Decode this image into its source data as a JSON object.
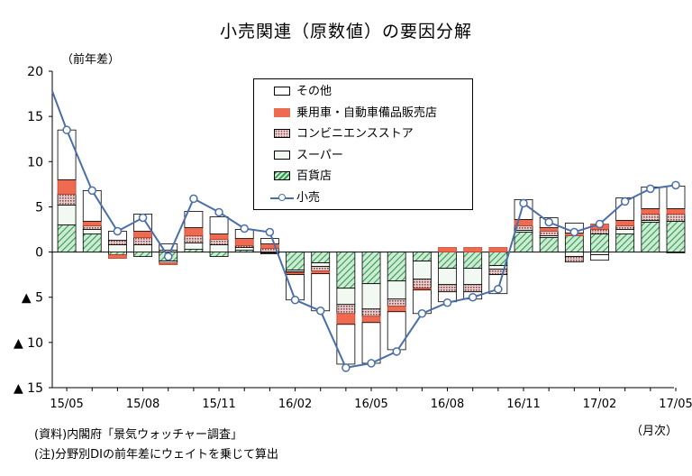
{
  "chart_data": {
    "type": "bar",
    "title": "小売関連（原数値）の要因分解",
    "ylabel": "（前年差）",
    "xlabel": "（月次）",
    "ylim": [
      -15,
      20
    ],
    "yticks": [
      {
        "value": 20,
        "label": "20"
      },
      {
        "value": 15,
        "label": "15"
      },
      {
        "value": 10,
        "label": "10"
      },
      {
        "value": 5,
        "label": "5"
      },
      {
        "value": 0,
        "label": "0"
      },
      {
        "value": -5,
        "label": "▲ 5"
      },
      {
        "value": -10,
        "label": "▲ 10"
      },
      {
        "value": -15,
        "label": "▲ 15"
      }
    ],
    "categories": [
      "15/05",
      "15/06",
      "15/07",
      "15/08",
      "15/09",
      "15/10",
      "15/11",
      "15/12",
      "16/01",
      "16/02",
      "16/03",
      "16/04",
      "16/05",
      "16/06",
      "16/07",
      "16/08",
      "16/09",
      "16/10",
      "16/11",
      "16/12",
      "17/01",
      "17/02",
      "17/03",
      "17/04",
      "17/05"
    ],
    "xtick_labels": [
      {
        "index": 0,
        "label": "15/05"
      },
      {
        "index": 3,
        "label": "15/08"
      },
      {
        "index": 6,
        "label": "15/11"
      },
      {
        "index": 9,
        "label": "16/02"
      },
      {
        "index": 12,
        "label": "16/05"
      },
      {
        "index": 15,
        "label": "16/08"
      },
      {
        "index": 18,
        "label": "16/11"
      },
      {
        "index": 21,
        "label": "17/02"
      },
      {
        "index": 24,
        "label": "17/05"
      }
    ],
    "legend_position": "top-center",
    "series": [
      {
        "name": "百貨店",
        "style": "green-hatched",
        "color": "#4caf6a",
        "values": [
          3.0,
          2.0,
          -0.3,
          -0.5,
          -1.0,
          0.3,
          -0.5,
          0.2,
          -0.1,
          -2.0,
          -1.2,
          -4.0,
          -3.5,
          -3.2,
          -1.0,
          -1.8,
          -1.8,
          -1.5,
          2.2,
          1.6,
          1.8,
          2.0,
          2.0,
          3.3,
          3.4
        ]
      },
      {
        "name": "スーパー",
        "style": "white",
        "color": "#f2f8f2",
        "values": [
          2.2,
          0.5,
          0.8,
          0.8,
          -0.2,
          0.7,
          0.8,
          0.3,
          -0.1,
          -0.2,
          -0.4,
          -1.8,
          -2.8,
          -2.0,
          -2.0,
          -1.8,
          -1.8,
          -0.4,
          0.2,
          0.2,
          -0.5,
          -0.3,
          0.5,
          0.2,
          -0.1
        ]
      },
      {
        "name": "コンビニエンスストア",
        "style": "brown-dotted",
        "color": "#b08080",
        "values": [
          1.2,
          0.4,
          0.5,
          0.8,
          0.2,
          0.8,
          0.6,
          0.2,
          0.4,
          -0.1,
          -0.5,
          -1.0,
          -0.8,
          -0.8,
          -1.0,
          -0.8,
          -0.8,
          -0.6,
          0.5,
          0.5,
          -0.6,
          0.5,
          0.4,
          0.7,
          0.8
        ]
      },
      {
        "name": "乗用車・自動車備品販売店",
        "style": "orange",
        "color": "#ee6a50",
        "values": [
          1.6,
          0.5,
          -0.4,
          0.7,
          -0.2,
          0.9,
          0.6,
          0.8,
          0.5,
          -0.2,
          -0.3,
          -1.2,
          -0.7,
          -0.6,
          -0.2,
          0.5,
          0.5,
          0.5,
          0.7,
          0.4,
          0.3,
          0.6,
          0.6,
          0.6,
          0.6
        ]
      },
      {
        "name": "その他",
        "style": "white",
        "color": "#ffffff",
        "values": [
          5.5,
          3.4,
          1.0,
          1.9,
          0.7,
          1.8,
          1.9,
          1.0,
          0.6,
          -2.8,
          -4.1,
          -4.4,
          -4.5,
          -4.2,
          -2.6,
          -1.1,
          -0.8,
          -2.1,
          2.2,
          1.1,
          1.1,
          -0.6,
          2.5,
          2.4,
          2.5
        ]
      },
      {
        "name": "小売",
        "style": "line",
        "color": "#4a6fa8",
        "values": [
          13.5,
          6.8,
          2.3,
          3.8,
          -0.5,
          5.9,
          4.4,
          2.6,
          2.2,
          -5.3,
          -6.5,
          -12.8,
          -12.3,
          -11.0,
          -6.8,
          -5.6,
          -5.0,
          -4.1,
          5.4,
          3.3,
          2.2,
          3.1,
          5.6,
          7.0,
          7.4
        ]
      }
    ],
    "line_start_value": 17.8,
    "notes": [
      "(資料)内閣府「景気ウォッチャー調査」",
      "(注)分野別DIの前年差にウェイトを乗じて算出"
    ]
  }
}
